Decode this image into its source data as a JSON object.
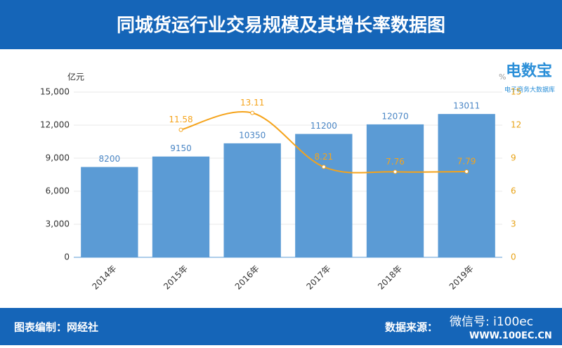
{
  "chart_data": {
    "type": "bar",
    "title": "同城货运行业交易规模及其增长率数据图",
    "y_unit": "亿元",
    "y2_unit": "%",
    "categories": [
      "2014年",
      "2015年",
      "2016年",
      "2017年",
      "2018年",
      "2019年"
    ],
    "series": [
      {
        "type": "bar",
        "color": "#5b9bd5",
        "values": [
          8200,
          9150,
          10350,
          11200,
          12070,
          13011
        ]
      },
      {
        "type": "line",
        "color": "#f5a31a",
        "axis": "y2",
        "values": [
          null,
          11.58,
          13.11,
          8.21,
          7.76,
          7.79
        ]
      }
    ],
    "ylim": [
      0,
      15000
    ],
    "yticks": [
      0,
      {
        "value": 3000,
        "label": "3,000"
      },
      {
        "value": 6000,
        "label": "6,000"
      },
      {
        "value": 9000,
        "label": "9,000"
      },
      {
        "value": 12000,
        "label": "12,000"
      },
      {
        "value": 15000,
        "label": "15,000"
      }
    ],
    "y2lim": [
      0,
      15
    ],
    "y2ticks": [
      0,
      3,
      6,
      9,
      12,
      15
    ],
    "grid": true
  },
  "logo": {
    "name": "电数宝",
    "tagline": "电子商务大数据库"
  },
  "footer": {
    "left": "图表编制：网经社",
    "right": "数据来源：",
    "wechat": "微信号: i100ec",
    "site": "WWW.100EC.CN"
  }
}
